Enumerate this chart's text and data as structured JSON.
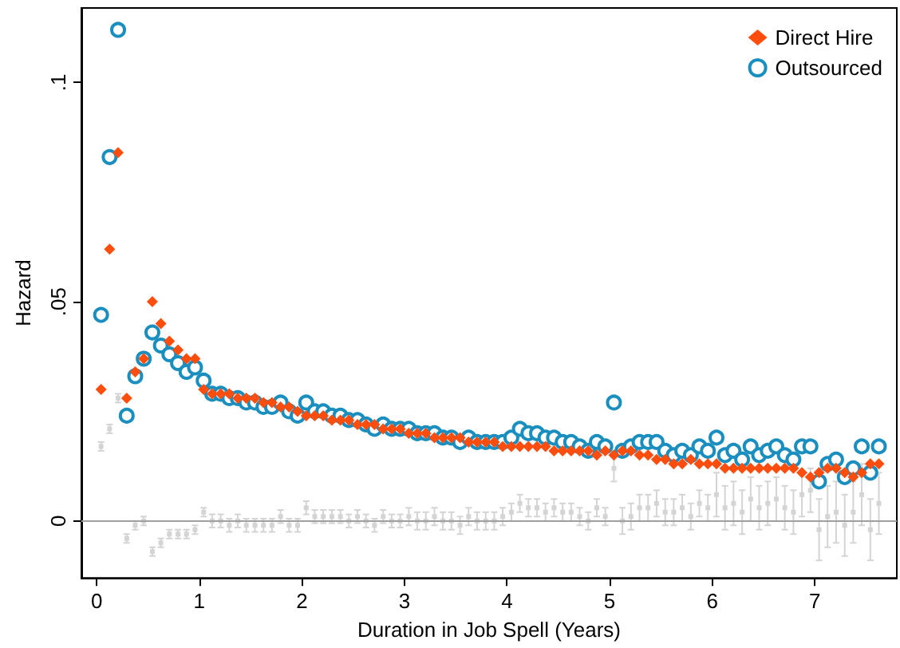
{
  "chart_data": {
    "type": "scatter",
    "xlabel": "Duration in Job Spell (Years)",
    "ylabel": "Hazard",
    "x": [
      0.042,
      0.125,
      0.208,
      0.292,
      0.375,
      0.458,
      0.542,
      0.625,
      0.708,
      0.792,
      0.875,
      0.958,
      1.042,
      1.125,
      1.208,
      1.292,
      1.375,
      1.458,
      1.542,
      1.625,
      1.708,
      1.792,
      1.875,
      1.958,
      2.042,
      2.125,
      2.208,
      2.292,
      2.375,
      2.458,
      2.542,
      2.625,
      2.708,
      2.792,
      2.875,
      2.958,
      3.042,
      3.125,
      3.208,
      3.292,
      3.375,
      3.458,
      3.542,
      3.625,
      3.708,
      3.792,
      3.875,
      3.958,
      4.042,
      4.125,
      4.208,
      4.292,
      4.375,
      4.458,
      4.542,
      4.625,
      4.708,
      4.792,
      4.875,
      4.958,
      5.042,
      5.125,
      5.208,
      5.292,
      5.375,
      5.458,
      5.542,
      5.625,
      5.708,
      5.792,
      5.875,
      5.958,
      6.042,
      6.125,
      6.208,
      6.292,
      6.375,
      6.458,
      6.542,
      6.625,
      6.708,
      6.792,
      6.875,
      6.958,
      7.042,
      7.125,
      7.208,
      7.292,
      7.375,
      7.458,
      7.542,
      7.625
    ],
    "series": [
      {
        "color": "#d4d4d4",
        "marker": "square",
        "values": [
          0.017,
          0.021,
          0.028,
          -0.004,
          -0.001,
          0,
          -0.007,
          -0.005,
          -0.003,
          -0.003,
          -0.003,
          -0.002,
          0.002,
          0,
          0,
          -0.001,
          0,
          -0.001,
          -0.001,
          -0.001,
          -0.001,
          0.001,
          -0.001,
          -0.001,
          0.003,
          0.001,
          0.001,
          0.001,
          0.001,
          0,
          0.001,
          0,
          -0.001,
          0.001,
          0,
          0,
          0.001,
          0,
          0,
          0.001,
          0,
          0,
          -0.001,
          0.001,
          0,
          0,
          0,
          0.001,
          0.002,
          0.004,
          0.003,
          0.003,
          0.002,
          0.003,
          0.002,
          0.002,
          0.001,
          0,
          0.003,
          0.001,
          0.012,
          0,
          0.001,
          0.003,
          0.003,
          0.004,
          0.002,
          0.002,
          0.003,
          0.001,
          0.004,
          0.003,
          0.006,
          0.003,
          0.004,
          0.002,
          0.005,
          0.003,
          0.004,
          0.005,
          0.003,
          0.002,
          0.006,
          0.007,
          -0.002,
          0.001,
          0.002,
          -0.001,
          0.002,
          0.006,
          -0.002,
          0.004
        ],
        "errors": [
          0.001,
          0.001,
          0.001,
          0.001,
          0.001,
          0.001,
          0.001,
          0.001,
          0.001,
          0.001,
          0.001,
          0.001,
          0.001,
          0.0015,
          0.0015,
          0.0015,
          0.0015,
          0.0015,
          0.0015,
          0.0015,
          0.0015,
          0.0015,
          0.0015,
          0.0015,
          0.0015,
          0.0015,
          0.0015,
          0.0015,
          0.0015,
          0.0015,
          0.0015,
          0.0015,
          0.0015,
          0.0015,
          0.0015,
          0.0015,
          0.002,
          0.002,
          0.002,
          0.002,
          0.002,
          0.002,
          0.002,
          0.002,
          0.002,
          0.002,
          0.002,
          0.002,
          0.002,
          0.002,
          0.002,
          0.002,
          0.002,
          0.002,
          0.002,
          0.002,
          0.002,
          0.002,
          0.002,
          0.002,
          0.003,
          0.003,
          0.003,
          0.003,
          0.003,
          0.003,
          0.003,
          0.003,
          0.003,
          0.003,
          0.003,
          0.003,
          0.005,
          0.005,
          0.005,
          0.005,
          0.005,
          0.005,
          0.005,
          0.005,
          0.005,
          0.005,
          0.005,
          0.005,
          0.007,
          0.007,
          0.007,
          0.007,
          0.007,
          0.007,
          0.007,
          0.007
        ]
      },
      {
        "name": "Direct Hire",
        "color": "#ff4d0d",
        "marker": "diamond",
        "values": [
          0.03,
          0.062,
          0.084,
          0.028,
          0.034,
          0.037,
          0.05,
          0.045,
          0.041,
          0.039,
          0.037,
          0.037,
          0.03,
          0.029,
          0.029,
          0.029,
          0.028,
          0.028,
          0.028,
          0.027,
          0.027,
          0.026,
          0.026,
          0.025,
          0.024,
          0.024,
          0.024,
          0.023,
          0.023,
          0.023,
          0.022,
          0.022,
          0.022,
          0.021,
          0.021,
          0.021,
          0.02,
          0.02,
          0.02,
          0.019,
          0.019,
          0.019,
          0.019,
          0.018,
          0.018,
          0.018,
          0.018,
          0.017,
          0.017,
          0.017,
          0.017,
          0.017,
          0.017,
          0.016,
          0.016,
          0.016,
          0.016,
          0.016,
          0.015,
          0.016,
          0.015,
          0.016,
          0.016,
          0.015,
          0.015,
          0.014,
          0.014,
          0.013,
          0.013,
          0.014,
          0.013,
          0.013,
          0.013,
          0.012,
          0.012,
          0.012,
          0.012,
          0.012,
          0.012,
          0.012,
          0.012,
          0.012,
          0.011,
          0.01,
          0.011,
          0.012,
          0.012,
          0.011,
          0.01,
          0.011,
          0.013,
          0.013
        ]
      },
      {
        "name": "Outsourced",
        "color": "#1a8fbf",
        "marker": "circle",
        "values": [
          0.047,
          0.083,
          0.112,
          0.024,
          0.033,
          0.037,
          0.043,
          0.04,
          0.038,
          0.036,
          0.034,
          0.035,
          0.032,
          0.029,
          0.029,
          0.028,
          0.028,
          0.027,
          0.027,
          0.026,
          0.026,
          0.027,
          0.025,
          0.024,
          0.027,
          0.025,
          0.025,
          0.024,
          0.024,
          0.023,
          0.023,
          0.022,
          0.021,
          0.022,
          0.021,
          0.021,
          0.021,
          0.02,
          0.02,
          0.02,
          0.019,
          0.019,
          0.018,
          0.019,
          0.018,
          0.018,
          0.018,
          0.018,
          0.019,
          0.021,
          0.02,
          0.02,
          0.019,
          0.019,
          0.018,
          0.018,
          0.017,
          0.016,
          0.018,
          0.017,
          0.027,
          0.016,
          0.017,
          0.018,
          0.018,
          0.018,
          0.016,
          0.015,
          0.016,
          0.015,
          0.017,
          0.016,
          0.019,
          0.015,
          0.016,
          0.014,
          0.017,
          0.015,
          0.016,
          0.017,
          0.015,
          0.014,
          0.017,
          0.017,
          0.009,
          0.013,
          0.014,
          0.01,
          0.012,
          0.017,
          0.011,
          0.017
        ]
      }
    ],
    "xlim": [
      -0.15,
      7.8
    ],
    "xticks": [
      0,
      1,
      2,
      3,
      4,
      5,
      6,
      7
    ],
    "ylim": [
      -0.013,
      0.117
    ],
    "yticks": [
      0,
      {
        "value": 0.05,
        "label": ".05"
      },
      {
        "value": 0.1,
        "label": ".1"
      }
    ],
    "ref_lines": [
      {
        "axis": "y",
        "value": 0,
        "color": "#a0a0a0"
      }
    ],
    "grid": false,
    "legend": "top right"
  }
}
